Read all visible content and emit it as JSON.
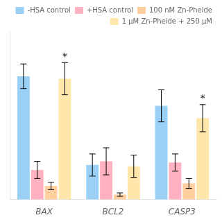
{
  "chart_data": {
    "type": "bar",
    "categories": [
      "BAX",
      "BCL2",
      "CASP3"
    ],
    "series": [
      {
        "name": "-HSA control",
        "values": [
          5.0,
          1.4,
          3.8
        ],
        "errors": [
          0.5,
          0.45,
          0.65
        ]
      },
      {
        "name": "+HSA control",
        "values": [
          1.2,
          1.55,
          1.5
        ],
        "errors": [
          0.35,
          0.55,
          0.35
        ]
      },
      {
        "name": "100 nM Zn-Pheide",
        "values": [
          0.55,
          0.2,
          0.65
        ],
        "errors": [
          0.15,
          0.07,
          0.2
        ]
      },
      {
        "name": "1 μM Zn-Pheide + 250 μM",
        "values": [
          4.9,
          1.35,
          3.3
        ],
        "errors": [
          0.65,
          0.45,
          0.55
        ],
        "annotations": [
          "*",
          null,
          "*"
        ]
      }
    ],
    "ylim": [
      0,
      6.8
    ],
    "grid": false,
    "legend": "upper right",
    "tick_labels": "x"
  }
}
